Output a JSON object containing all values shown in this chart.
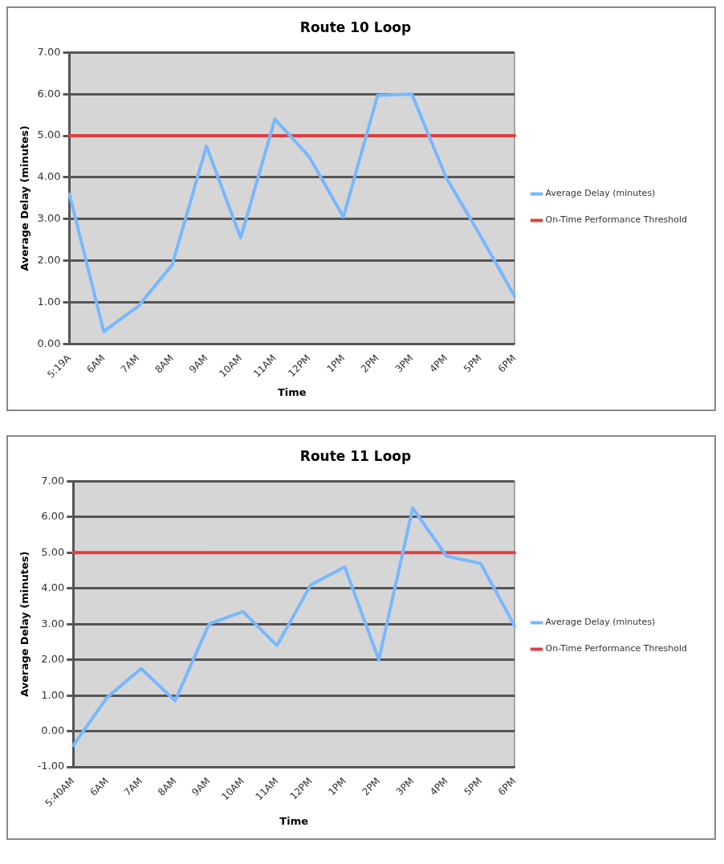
{
  "chart_data": [
    {
      "type": "line",
      "title": "Route 10 Loop",
      "xlabel": "Time",
      "ylabel": "Average Delay (minutes)",
      "categories": [
        "5:19A",
        "6AM",
        "7AM",
        "8AM",
        "9AM",
        "10AM",
        "11AM",
        "12PM",
        "1PM",
        "2PM",
        "3PM",
        "4PM",
        "5PM",
        "6PM"
      ],
      "series": [
        {
          "name": "Average Delay (minutes)",
          "color": "#77b8ff",
          "values": [
            3.6,
            0.3,
            0.9,
            1.9,
            4.75,
            2.55,
            5.4,
            4.5,
            3.05,
            5.97,
            6.0,
            4.0,
            2.6,
            1.15
          ]
        },
        {
          "name": "On-Time Performance Threshold",
          "color": "#e04040",
          "values": [
            5,
            5,
            5,
            5,
            5,
            5,
            5,
            5,
            5,
            5,
            5,
            5,
            5,
            5
          ]
        }
      ],
      "ylim": [
        0,
        7
      ],
      "yticks": [
        {
          "value": 0,
          "label": "0.00"
        },
        {
          "value": 1,
          "label": "1.00"
        },
        {
          "value": 2,
          "label": "2.00"
        },
        {
          "value": 3,
          "label": "3.00"
        },
        {
          "value": 4,
          "label": "4.00"
        },
        {
          "value": 5,
          "label": "5.00"
        },
        {
          "value": 6,
          "label": "6.00"
        },
        {
          "value": 7,
          "label": "7.00"
        }
      ],
      "grid": "y",
      "legend": "right",
      "marker": "none"
    },
    {
      "type": "line",
      "title": "Route 11 Loop",
      "xlabel": "Time",
      "ylabel": "Average Delay (minutes)",
      "categories": [
        "5:40AM",
        "6AM",
        "7AM",
        "8AM",
        "9AM",
        "10AM",
        "11AM",
        "12PM",
        "1PM",
        "2PM",
        "3PM",
        "4PM",
        "5PM",
        "6PM"
      ],
      "series": [
        {
          "name": "Average Delay (minutes)",
          "color": "#77b8ff",
          "values": [
            -0.4,
            0.95,
            1.75,
            0.85,
            3.0,
            3.35,
            2.4,
            4.1,
            4.6,
            2.0,
            6.25,
            4.9,
            4.7,
            2.95
          ]
        },
        {
          "name": "On-Time Performance Threshold",
          "color": "#e04040",
          "values": [
            5,
            5,
            5,
            5,
            5,
            5,
            5,
            5,
            5,
            5,
            5,
            5,
            5,
            5
          ]
        }
      ],
      "ylim": [
        -1,
        7
      ],
      "yticks": [
        {
          "value": -1,
          "label": "-1.00"
        },
        {
          "value": 0,
          "label": "0.00"
        },
        {
          "value": 1,
          "label": "1.00"
        },
        {
          "value": 2,
          "label": "2.00"
        },
        {
          "value": 3,
          "label": "3.00"
        },
        {
          "value": 4,
          "label": "4.00"
        },
        {
          "value": 5,
          "label": "5.00"
        },
        {
          "value": 6,
          "label": "6.00"
        },
        {
          "value": 7,
          "label": "7.00"
        }
      ],
      "grid": "y",
      "legend": "right",
      "marker": "none"
    }
  ]
}
